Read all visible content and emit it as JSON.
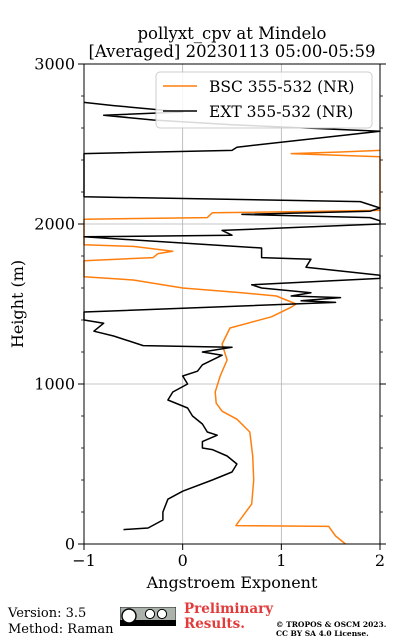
{
  "chart_data": {
    "type": "line",
    "title": "pollyxt_cpv at Mindelo\n[Averaged] 20230113 05:00-05:59",
    "title_lines": [
      "pollyxt_cpv at Mindelo",
      "[Averaged] 20230113 05:00-05:59"
    ],
    "xlabel": "Angstroem Exponent",
    "ylabel": "Height (m)",
    "xlim": [
      -1,
      2
    ],
    "ylim": [
      0,
      3000
    ],
    "xticks": [
      -1,
      0,
      1,
      2
    ],
    "xtick_labels": [
      "−1",
      "0",
      "1",
      "2"
    ],
    "yticks": [
      0,
      1000,
      2000,
      3000
    ],
    "ytick_labels": [
      "0",
      "1000",
      "2000",
      "3000"
    ],
    "grid": true,
    "legend": "top-right",
    "series": [
      {
        "name": "BSC 355-532 (NR)",
        "color": "#ff7f0e",
        "points": [
          [
            1.65,
            0
          ],
          [
            1.55,
            50
          ],
          [
            1.48,
            110
          ],
          [
            0.54,
            115
          ],
          [
            0.58,
            150
          ],
          [
            0.7,
            250
          ],
          [
            0.72,
            400
          ],
          [
            0.71,
            550
          ],
          [
            0.68,
            700
          ],
          [
            0.55,
            780
          ],
          [
            0.4,
            830
          ],
          [
            0.34,
            880
          ],
          [
            0.33,
            950
          ],
          [
            0.38,
            1050
          ],
          [
            0.45,
            1150
          ],
          [
            0.4,
            1250
          ],
          [
            0.48,
            1350
          ],
          [
            0.9,
            1420
          ],
          [
            1.1,
            1480
          ],
          [
            1.15,
            1500
          ],
          [
            0.95,
            1550
          ],
          [
            0.6,
            1570
          ],
          [
            0.0,
            1600
          ],
          [
            -0.5,
            1650
          ],
          [
            -1.0,
            1670
          ],
          [
            -1.0,
            1770
          ],
          [
            -0.3,
            1790
          ],
          [
            -0.25,
            1815
          ],
          [
            -0.1,
            1830
          ],
          [
            -0.5,
            1860
          ],
          [
            -1.0,
            1870
          ],
          [
            -1.0,
            2030
          ],
          [
            0.25,
            2040
          ],
          [
            0.3,
            2070
          ],
          [
            2.0,
            2085
          ],
          [
            2.0,
            2420
          ],
          [
            1.1,
            2440
          ],
          [
            1.6,
            2450
          ],
          [
            2.0,
            2460
          ]
        ]
      },
      {
        "name": "EXT 355-532 (NR)",
        "color": "#000000",
        "points": [
          [
            -0.6,
            90
          ],
          [
            -0.35,
            100
          ],
          [
            -0.2,
            150
          ],
          [
            -0.2,
            200
          ],
          [
            -0.15,
            280
          ],
          [
            0.0,
            330
          ],
          [
            0.3,
            400
          ],
          [
            0.5,
            450
          ],
          [
            0.55,
            500
          ],
          [
            0.45,
            550
          ],
          [
            0.3,
            590
          ],
          [
            0.2,
            600
          ],
          [
            0.2,
            640
          ],
          [
            0.35,
            680
          ],
          [
            0.25,
            700
          ],
          [
            0.2,
            750
          ],
          [
            0.1,
            800
          ],
          [
            0.05,
            850
          ],
          [
            -0.15,
            900
          ],
          [
            -0.1,
            950
          ],
          [
            0.05,
            1000
          ],
          [
            0.0,
            1050
          ],
          [
            0.15,
            1080
          ],
          [
            0.2,
            1120
          ],
          [
            0.4,
            1180
          ],
          [
            0.2,
            1200
          ],
          [
            0.5,
            1230
          ],
          [
            -0.4,
            1240
          ],
          [
            -0.7,
            1300
          ],
          [
            -0.9,
            1330
          ],
          [
            -0.8,
            1380
          ],
          [
            -1.0,
            1400
          ],
          [
            -1.0,
            1450
          ],
          [
            1.55,
            1510
          ],
          [
            1.2,
            1520
          ],
          [
            1.6,
            1540
          ],
          [
            1.1,
            1550
          ],
          [
            1.3,
            1570
          ],
          [
            0.8,
            1600
          ],
          [
            0.7,
            1620
          ],
          [
            2.0,
            1660
          ],
          [
            2.0,
            1680
          ],
          [
            1.25,
            1730
          ],
          [
            1.3,
            1780
          ],
          [
            0.8,
            1790
          ],
          [
            0.8,
            1850
          ],
          [
            -1.0,
            1920
          ],
          [
            0.5,
            1930
          ],
          [
            0.4,
            1960
          ],
          [
            2.0,
            2000
          ],
          [
            2.0,
            2020
          ],
          [
            1.9,
            2040
          ],
          [
            0.6,
            2060
          ],
          [
            1.9,
            2080
          ],
          [
            2.0,
            2100
          ],
          [
            1.8,
            2140
          ],
          [
            -1.0,
            2170
          ],
          [
            -1.0,
            2440
          ],
          [
            0.5,
            2460
          ],
          [
            0.55,
            2480
          ],
          [
            2.0,
            2580
          ],
          [
            0.5,
            2620
          ],
          [
            -0.3,
            2650
          ],
          [
            -0.8,
            2680
          ],
          [
            0.0,
            2700
          ],
          [
            -0.7,
            2740
          ],
          [
            -1.0,
            2760
          ]
        ]
      }
    ]
  },
  "legend_items": [
    {
      "label": "BSC 355-532 (NR)",
      "color": "#ff7f0e"
    },
    {
      "label": "EXT 355-532 (NR)",
      "color": "#000000"
    }
  ],
  "footer": {
    "version": "Version: 3.5",
    "method": "Method: Raman",
    "preliminary_line1": "Preliminary",
    "preliminary_line2": "Results.",
    "copyright_line1": "© TROPOS & OSCM 2023.",
    "copyright_line2": "CC BY SA 4.0 License.",
    "license_badge": "cc-by-sa-badge"
  }
}
